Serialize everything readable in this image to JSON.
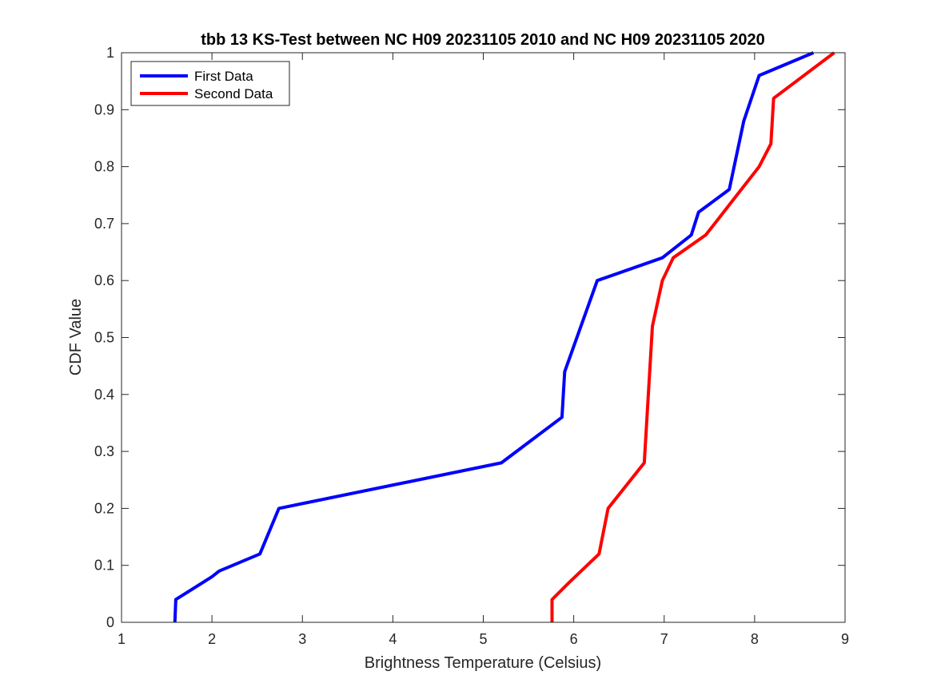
{
  "chart_data": {
    "type": "line",
    "title": "tbb 13 KS-Test between NC H09 20231105 2010 and NC H09 20231105 2020",
    "xlabel": "Brightness Temperature (Celsius)",
    "ylabel": "CDF Value",
    "xlim": [
      1,
      9
    ],
    "ylim": [
      0,
      1
    ],
    "xticks": [
      1,
      2,
      3,
      4,
      5,
      6,
      7,
      8,
      9
    ],
    "xtick_labels": [
      "1",
      "2",
      "3",
      "4",
      "5",
      "6",
      "7",
      "8",
      "9"
    ],
    "yticks": [
      0,
      0.1,
      0.2,
      0.3,
      0.4,
      0.5,
      0.6,
      0.7,
      0.8,
      0.9,
      1
    ],
    "ytick_labels": [
      "0",
      "0.1",
      "0.2",
      "0.3",
      "0.4",
      "0.5",
      "0.6",
      "0.7",
      "0.8",
      "0.9",
      "1"
    ],
    "grid": false,
    "legend_position": "top-left",
    "series": [
      {
        "name": "First Data",
        "color": "#0000ff",
        "x": [
          1.59,
          1.6,
          2.0,
          2.08,
          2.53,
          2.74,
          5.2,
          5.87,
          5.9,
          6.26,
          6.98,
          7.3,
          7.38,
          7.72,
          7.88,
          8.05,
          8.65
        ],
        "y": [
          0,
          0.04,
          0.08,
          0.09,
          0.12,
          0.2,
          0.28,
          0.36,
          0.44,
          0.6,
          0.64,
          0.68,
          0.72,
          0.76,
          0.88,
          0.96,
          1.0
        ]
      },
      {
        "name": "Second Data",
        "color": "#ff0000",
        "x": [
          5.76,
          5.76,
          5.95,
          6.28,
          6.38,
          6.78,
          6.87,
          6.98,
          7.1,
          7.46,
          8.05,
          8.18,
          8.21,
          8.88
        ],
        "y": [
          0,
          0.04,
          0.07,
          0.12,
          0.2,
          0.28,
          0.52,
          0.6,
          0.64,
          0.68,
          0.8,
          0.84,
          0.92,
          1.0
        ]
      }
    ]
  }
}
